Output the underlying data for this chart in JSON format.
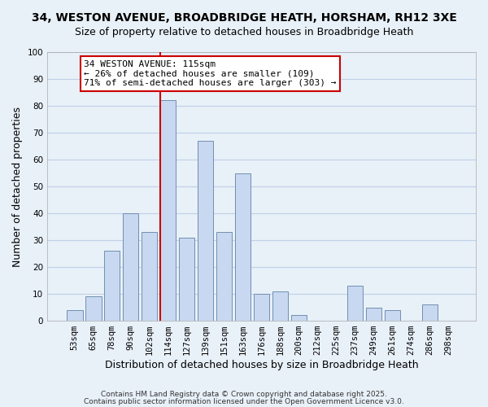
{
  "title_line1": "34, WESTON AVENUE, BROADBRIDGE HEATH, HORSHAM, RH12 3XE",
  "title_line2": "Size of property relative to detached houses in Broadbridge Heath",
  "xlabel": "Distribution of detached houses by size in Broadbridge Heath",
  "ylabel": "Number of detached properties",
  "bar_labels": [
    "53sqm",
    "65sqm",
    "78sqm",
    "90sqm",
    "102sqm",
    "114sqm",
    "127sqm",
    "139sqm",
    "151sqm",
    "163sqm",
    "176sqm",
    "188sqm",
    "200sqm",
    "212sqm",
    "225sqm",
    "237sqm",
    "249sqm",
    "261sqm",
    "274sqm",
    "286sqm",
    "298sqm"
  ],
  "bar_values": [
    4,
    9,
    26,
    40,
    33,
    82,
    31,
    67,
    33,
    55,
    10,
    11,
    2,
    0,
    0,
    13,
    5,
    4,
    0,
    6,
    0
  ],
  "bar_color": "#c8d8f0",
  "bar_edge_color": "#7090b0",
  "vline_index": 5,
  "vline_color": "#cc0000",
  "annotation_text": "34 WESTON AVENUE: 115sqm\n← 26% of detached houses are smaller (109)\n71% of semi-detached houses are larger (303) →",
  "annotation_box_color": "#ffffff",
  "annotation_box_edge_color": "#cc0000",
  "ylim": [
    0,
    100
  ],
  "yticks": [
    0,
    10,
    20,
    30,
    40,
    50,
    60,
    70,
    80,
    90,
    100
  ],
  "grid_color": "#c0d0e8",
  "background_color": "#e8f0f8",
  "footer_line1": "Contains HM Land Registry data © Crown copyright and database right 2025.",
  "footer_line2": "Contains public sector information licensed under the Open Government Licence v3.0.",
  "title_fontsize": 10,
  "subtitle_fontsize": 9,
  "axis_label_fontsize": 9,
  "tick_fontsize": 7.5,
  "annotation_fontsize": 8,
  "footer_fontsize": 6.5
}
